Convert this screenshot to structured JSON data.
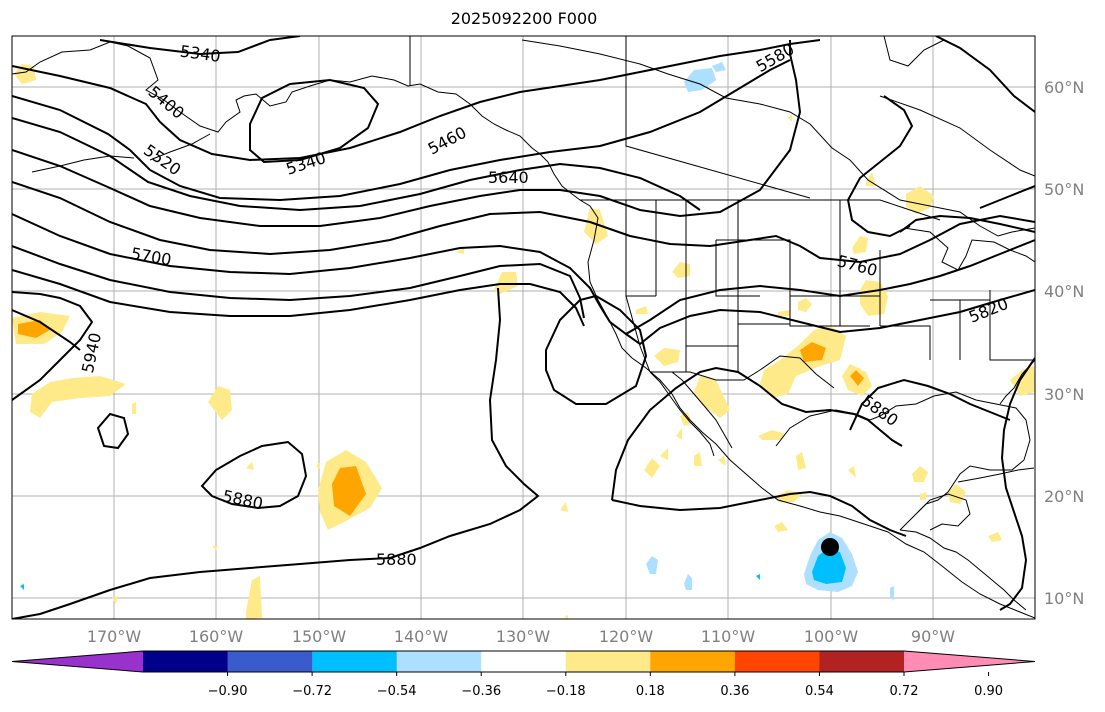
{
  "title": "2025092200 F000",
  "grid": {
    "longitudes": [
      {
        "label": "170°W"
      },
      {
        "label": "160°W"
      },
      {
        "label": "150°W"
      },
      {
        "label": "140°W"
      },
      {
        "label": "130°W"
      },
      {
        "label": "120°W"
      },
      {
        "label": "110°W"
      },
      {
        "label": "100°W"
      },
      {
        "label": "90°W"
      }
    ],
    "latitudes": [
      {
        "label": "60°N"
      },
      {
        "label": "50°N"
      },
      {
        "label": "40°N"
      },
      {
        "label": "30°N"
      },
      {
        "label": "20°N"
      },
      {
        "label": "10°N"
      }
    ]
  },
  "contour_labels": [
    "5340",
    "5400",
    "5520",
    "5340",
    "5460",
    "5580",
    "5640",
    "5700",
    "5760",
    "5820",
    "5940",
    "5880",
    "5880",
    "5880"
  ],
  "colorbar": {
    "ticks": [
      "−0.90",
      "−0.72",
      "−0.54",
      "−0.36",
      "−0.18",
      "0.18",
      "0.36",
      "0.54",
      "0.72",
      "0.90"
    ],
    "colors": [
      "#9932CC",
      "#00008B",
      "#3A5BCB",
      "#00BFFF",
      "#ADDFFF",
      "#FFFFFF",
      "#FFEA8A",
      "#FFA500",
      "#FF4500",
      "#B22222",
      "#FF8CB4"
    ]
  },
  "colors": {
    "contour": "#000000",
    "coast": "#000000",
    "gridline": "#b0b0b0",
    "marker": "#000000"
  }
}
